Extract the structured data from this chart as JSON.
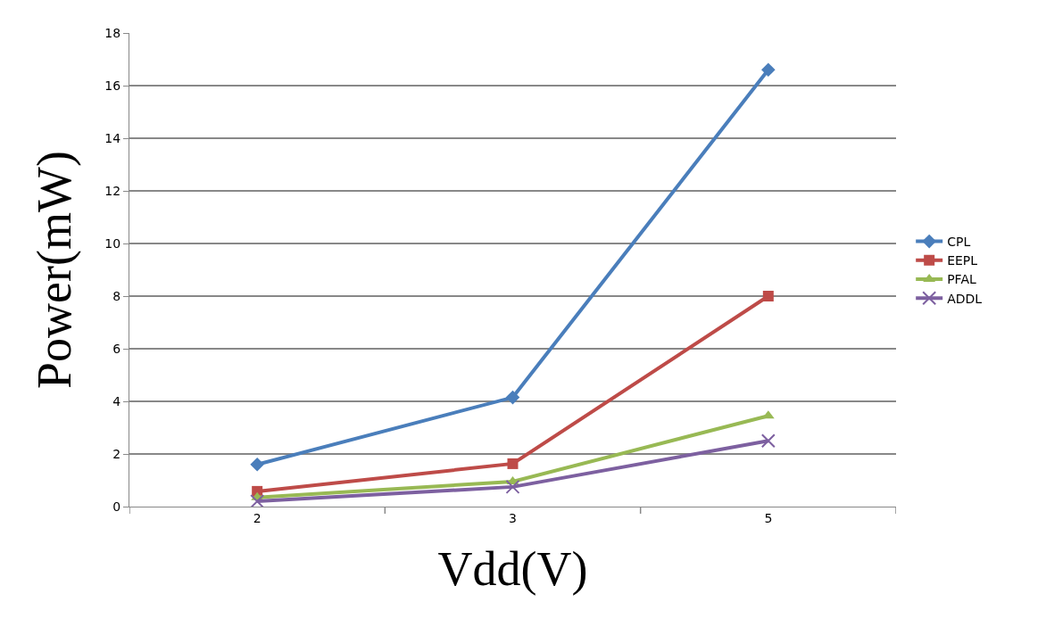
{
  "chart_data": {
    "type": "line",
    "xlabel": "Vdd(V)",
    "ylabel": "Power(mW)",
    "categories": [
      "2",
      "3",
      "5"
    ],
    "series": [
      {
        "name": "CPL",
        "color": "#4a7ebb",
        "marker": "diamond",
        "values": [
          1.6,
          4.15,
          16.6
        ]
      },
      {
        "name": "EEPL",
        "color": "#be4b48",
        "marker": "square",
        "values": [
          0.58,
          1.63,
          8.0
        ]
      },
      {
        "name": "PFAL",
        "color": "#98b954",
        "marker": "triangle",
        "values": [
          0.35,
          0.95,
          3.45
        ]
      },
      {
        "name": "ADDL",
        "color": "#7d60a0",
        "marker": "cross",
        "values": [
          0.2,
          0.75,
          2.5
        ]
      }
    ],
    "ylim": [
      0,
      18
    ],
    "yticks": [
      0,
      2,
      4,
      6,
      8,
      10,
      12,
      14,
      16,
      18
    ],
    "grid": "y",
    "legend": "right"
  }
}
